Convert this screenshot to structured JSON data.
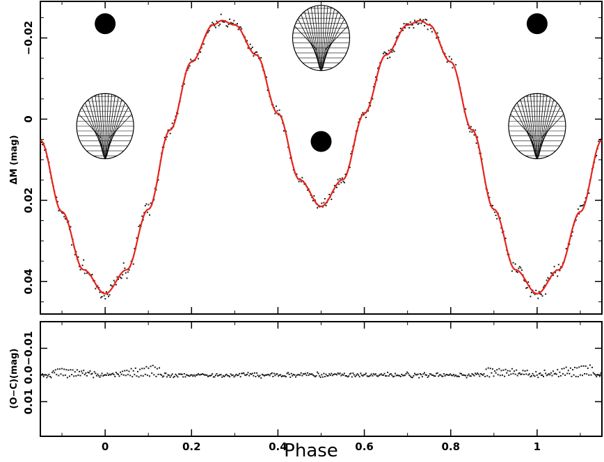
{
  "chart_data": [
    {
      "type": "scatter",
      "panel": "light-curve",
      "xlabel": "Phase",
      "ylabel": "ΔM (mag)",
      "xlim": [
        -0.15,
        1.15
      ],
      "ylim": [
        0.048,
        -0.029
      ],
      "y_inverted": true,
      "grid": false,
      "x_ticks": [
        0,
        0.2,
        0.4,
        0.6,
        0.8,
        1
      ],
      "x_tick_labels": [
        "0",
        "0.2",
        "0.4",
        "0.6",
        "0.8",
        "1"
      ],
      "y_ticks": [
        -0.02,
        0,
        0.02,
        0.04
      ],
      "y_tick_labels": [
        "−0.02",
        "0",
        "0.02",
        "0.04"
      ],
      "model_curve": {
        "color": "#e8231a",
        "points": [
          [
            -0.15,
            0.0052
          ],
          [
            -0.1,
            0.0228
          ],
          [
            -0.05,
            0.0371
          ],
          [
            0.0,
            0.043
          ],
          [
            0.05,
            0.0371
          ],
          [
            0.1,
            0.0222
          ],
          [
            0.15,
            0.0027
          ],
          [
            0.2,
            -0.0141
          ],
          [
            0.25,
            -0.0232
          ],
          [
            0.27,
            -0.0243
          ],
          [
            0.3,
            -0.0232
          ],
          [
            0.35,
            -0.0158
          ],
          [
            0.4,
            -0.0014
          ],
          [
            0.45,
            0.0149
          ],
          [
            0.5,
            0.0215
          ],
          [
            0.55,
            0.0149
          ],
          [
            0.6,
            -0.0014
          ],
          [
            0.65,
            -0.0158
          ],
          [
            0.7,
            -0.0232
          ],
          [
            0.73,
            -0.0243
          ],
          [
            0.75,
            -0.0232
          ],
          [
            0.8,
            -0.0141
          ],
          [
            0.85,
            0.0027
          ],
          [
            0.9,
            0.0222
          ],
          [
            0.95,
            0.0371
          ],
          [
            1.0,
            0.043
          ],
          [
            1.05,
            0.0371
          ],
          [
            1.1,
            0.0228
          ],
          [
            1.15,
            0.0052
          ]
        ]
      },
      "observations": {
        "color": "#1a1a1a",
        "count": 520,
        "scatter_mag": 0.0012
      },
      "binary_models": [
        {
          "phase": 0.0,
          "component": "secondary",
          "y": -0.0235,
          "size": "small"
        },
        {
          "phase": 0.0,
          "component": "primary",
          "y": 0.0012,
          "size": "large"
        },
        {
          "phase": 0.5,
          "component": "primary",
          "y": -0.0205,
          "size": "large"
        },
        {
          "phase": 0.5,
          "component": "secondary",
          "y": 0.0055,
          "size": "small"
        },
        {
          "phase": 1.0,
          "component": "secondary",
          "y": -0.0235,
          "size": "small"
        },
        {
          "phase": 1.0,
          "component": "primary",
          "y": 0.0012,
          "size": "large"
        }
      ]
    },
    {
      "type": "scatter",
      "panel": "residuals",
      "xlabel": "Phase",
      "ylabel": "(O−C)(mag)",
      "xlim": [
        -0.15,
        1.15
      ],
      "ylim": [
        0.023,
        -0.02
      ],
      "y_inverted": true,
      "grid": false,
      "x_ticks": [
        0,
        0.2,
        0.4,
        0.6,
        0.8,
        1
      ],
      "x_tick_labels": [
        "0",
        "0.2",
        "0.4",
        "0.6",
        "0.8",
        "1"
      ],
      "y_ticks": [
        -0.01,
        0,
        0.01
      ],
      "y_tick_labels": [
        "−0.01",
        "0.0",
        "0.01"
      ],
      "residuals": {
        "color": "#1a1a1a",
        "count": 520,
        "spread_mag": 0.0009,
        "max_excursion_mag": 0.003
      }
    }
  ]
}
